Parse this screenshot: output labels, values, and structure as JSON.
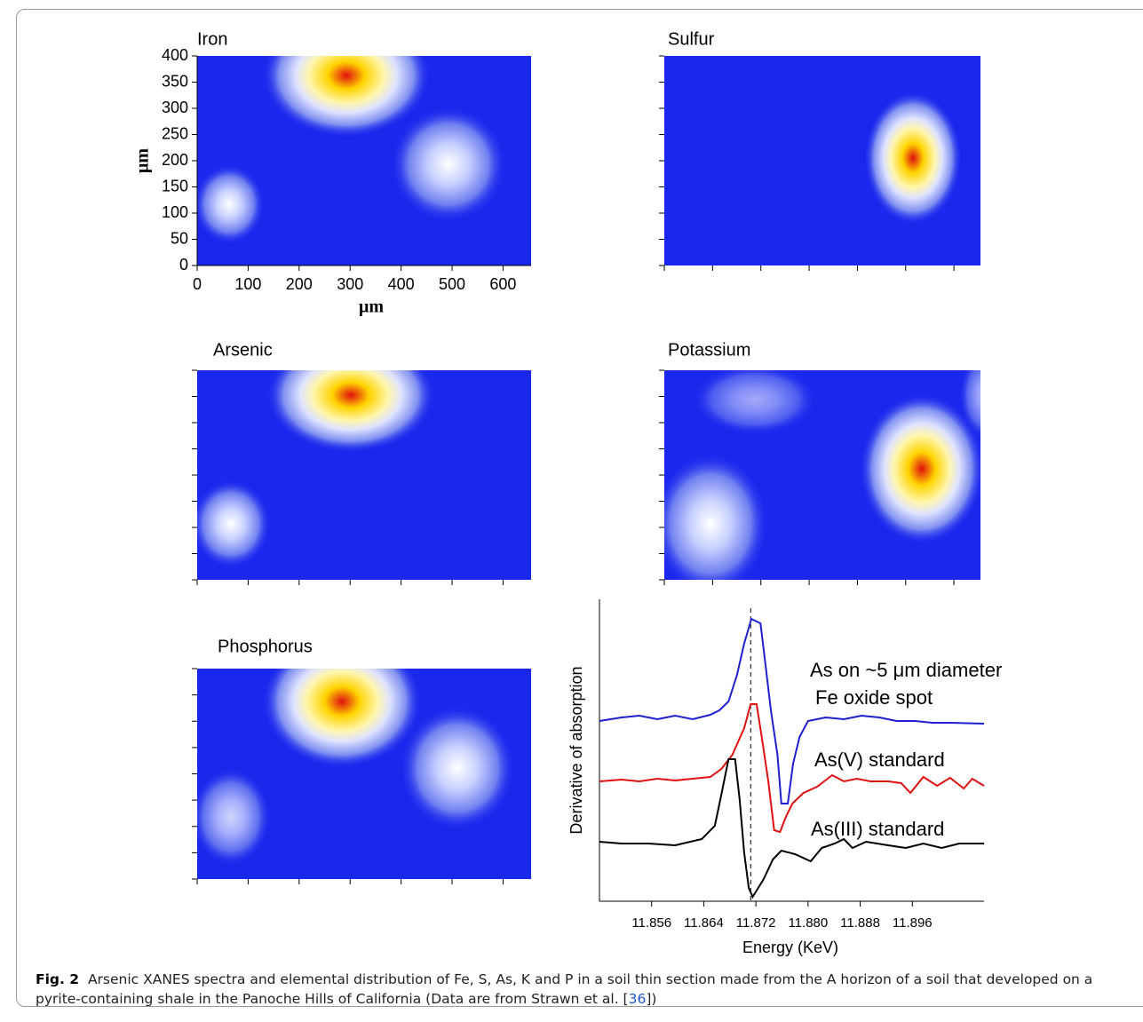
{
  "maps": [
    {
      "title": "Iron",
      "xlabel": "μm",
      "ylabel": "μm",
      "xlim": [
        0,
        655
      ],
      "ylim": [
        0,
        400
      ],
      "xticks": [
        0,
        100,
        200,
        300,
        400,
        500,
        600
      ],
      "yticks": [
        0,
        50,
        100,
        150,
        200,
        250,
        300,
        350,
        400
      ]
    },
    {
      "title": "Sulfur"
    },
    {
      "title": "Arsenic"
    },
    {
      "title": "Potassium"
    },
    {
      "title": "Phosphorus"
    }
  ],
  "chart_data": {
    "type": "line",
    "xlabel": "Energy (KeV)",
    "ylabel": "Derivative of absorption",
    "xlim": [
      11.848,
      11.907
    ],
    "ylim": [
      0,
      340
    ],
    "xticks": [
      {
        "value": 11.856,
        "label": "11.856"
      },
      {
        "value": 11.864,
        "label": "11.864"
      },
      {
        "value": 11.872,
        "label": "11.872"
      },
      {
        "value": 11.88,
        "label": "11.880"
      },
      {
        "value": 11.888,
        "label": "11.888"
      },
      {
        "value": 11.896,
        "label": "11.896"
      }
    ],
    "vline": 11.8712,
    "series": [
      {
        "color": "#1f1fd0",
        "x": [
          11.848,
          11.8514,
          11.8541,
          11.8569,
          11.8596,
          11.8623,
          11.865,
          11.8664,
          11.8678,
          11.8691,
          11.8702,
          11.8713,
          11.8727,
          11.8735,
          11.8743,
          11.8753,
          11.8759,
          11.8769,
          11.8777,
          11.8787,
          11.88,
          11.8827,
          11.8855,
          11.8882,
          11.8909,
          11.8936,
          11.8964,
          11.8991,
          11.9018,
          11.907
        ],
        "values": [
          203,
          207,
          209,
          205,
          209,
          205,
          210,
          215,
          225,
          255,
          290,
          318,
          313,
          265,
          215,
          165,
          110,
          110,
          155,
          185,
          203,
          207,
          205,
          209,
          207,
          203,
          203,
          201,
          201,
          200
        ]
      },
      {
        "color": "#e01010",
        "x": [
          11.848,
          11.8514,
          11.8541,
          11.8569,
          11.8596,
          11.8623,
          11.865,
          11.8667,
          11.8684,
          11.8702,
          11.8712,
          11.8721,
          11.8729,
          11.8739,
          11.8748,
          11.8757,
          11.8766,
          11.8776,
          11.8793,
          11.8814,
          11.8837,
          11.8855,
          11.8875,
          11.8896,
          11.8923,
          11.8943,
          11.8957,
          11.8977,
          11.8998,
          11.9018,
          11.9039,
          11.9052,
          11.907
        ],
        "values": [
          135,
          137,
          135,
          138,
          136,
          138,
          140,
          149,
          165,
          195,
          222,
          222,
          185,
          135,
          80,
          78,
          95,
          110,
          122,
          129,
          142,
          135,
          138,
          135,
          135,
          133,
          122,
          140,
          130,
          139,
          127,
          138,
          130
        ]
      },
      {
        "color": "#000000",
        "x": [
          11.848,
          11.8514,
          11.8555,
          11.8596,
          11.8637,
          11.8657,
          11.8667,
          11.8678,
          11.8688,
          11.8695,
          11.8702,
          11.8709,
          11.8715,
          11.8721,
          11.8732,
          11.8746,
          11.8759,
          11.878,
          11.8804,
          11.8821,
          11.8841,
          11.8855,
          11.8868,
          11.8889,
          11.8923,
          11.895,
          11.8977,
          11.9005,
          11.9032,
          11.907
        ],
        "values": [
          67,
          65,
          65,
          63,
          70,
          85,
          120,
          160,
          160,
          115,
          55,
          15,
          5,
          12,
          25,
          47,
          57,
          53,
          45,
          60,
          65,
          70,
          60,
          67,
          63,
          60,
          65,
          60,
          65,
          65
        ]
      }
    ],
    "annotations": [
      "As on ~5 μm diameter",
      "Fe oxide spot",
      "As(V) standard",
      "As(III) standard"
    ]
  },
  "caption": {
    "label": "Fig. 2",
    "text": "Arsenic XANES spectra and elemental distribution of Fe, S, As, K and P in a soil thin section made from the A horizon of a soil that developed on a pyrite-containing shale in the Panoche Hills of California (Data are from Strawn et al. [",
    "ref": "36",
    "end": "])"
  }
}
